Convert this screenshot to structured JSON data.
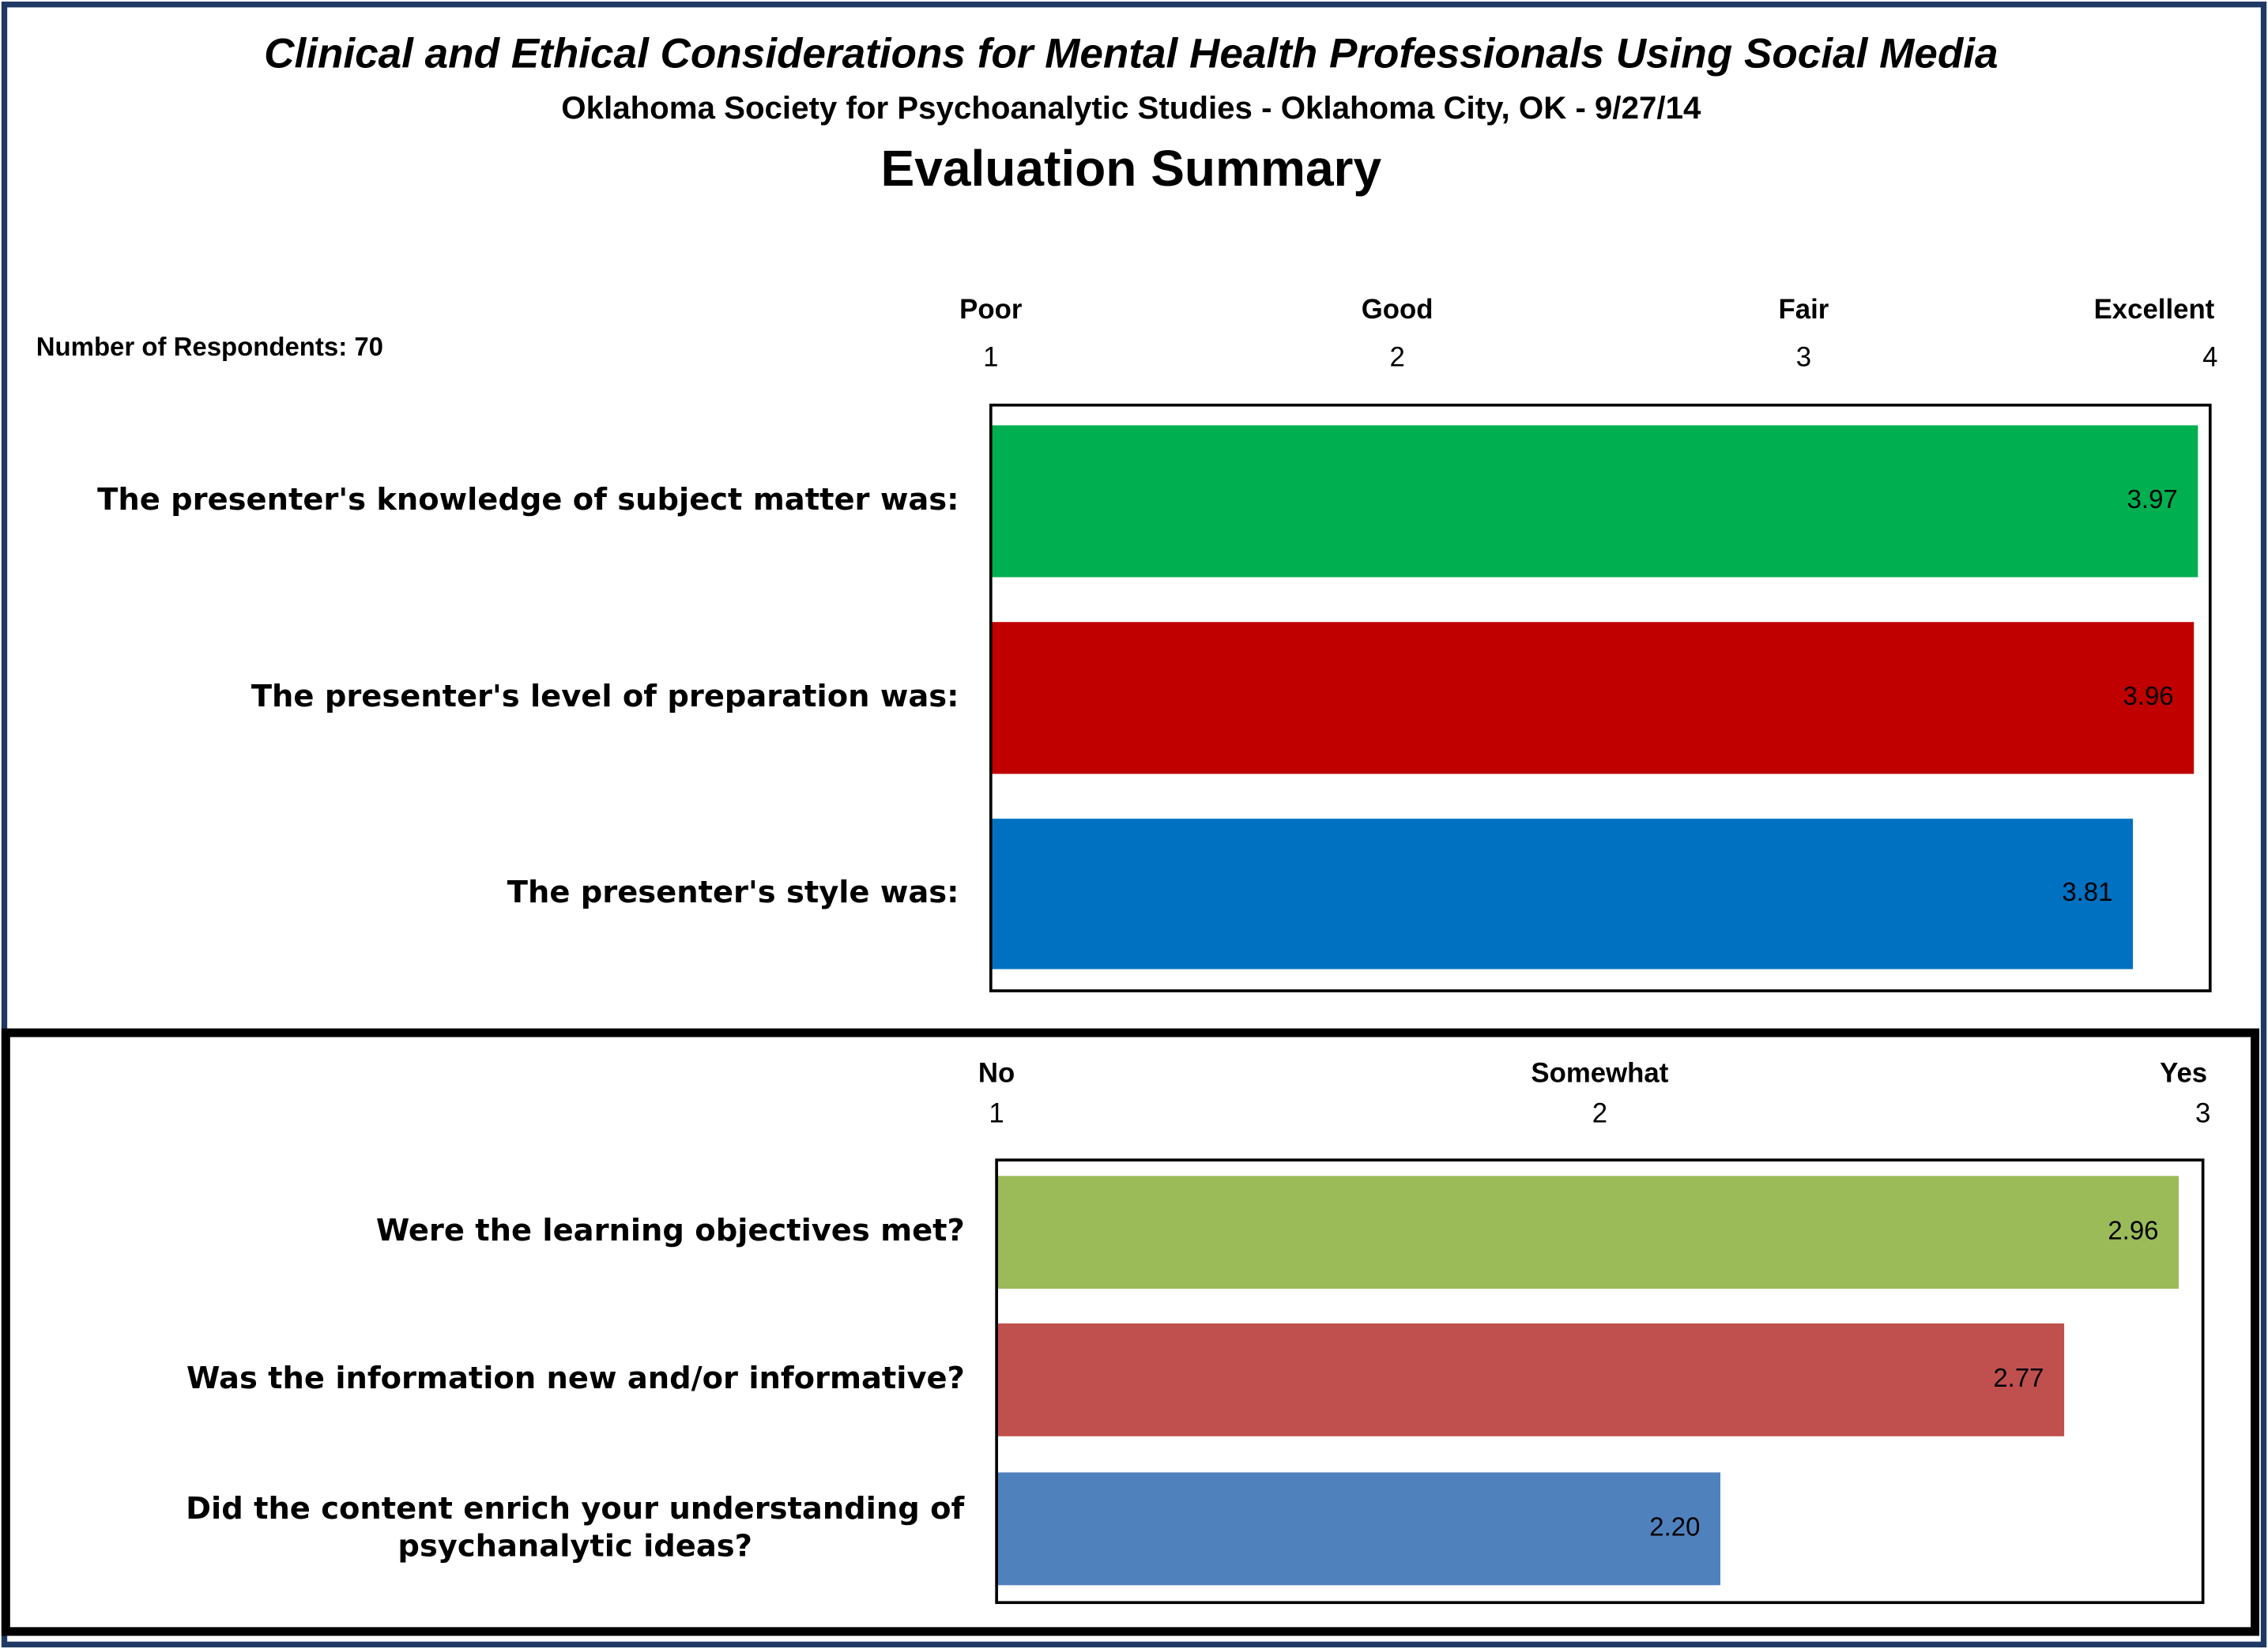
{
  "header": {
    "title": "Clinical and Ethical Considerations for Mental Health Professionals Using Social Media",
    "subtitle": "Oklahoma Society for Psychoanalytic Studies - Oklahoma City, OK - 9/27/14",
    "heading": "Evaluation Summary",
    "note": "Number of Respondents: 70"
  },
  "chart_data": [
    {
      "type": "hbar",
      "categories": [
        "The presenter's knowledge of subject matter was:",
        "The presenter's level of preparation was:",
        "The presenter's style was:"
      ],
      "values": [
        3.97,
        3.96,
        3.81
      ],
      "value_labels": [
        "3.97",
        "3.96",
        "3.81"
      ],
      "colors": [
        "#00b050",
        "#c00000",
        "#0070c0"
      ],
      "xlim": [
        1,
        4
      ],
      "xticks": [
        1,
        2,
        3,
        4
      ],
      "tick_names": [
        "Poor",
        "Good",
        "Fair",
        "Excellent"
      ]
    },
    {
      "type": "hbar",
      "categories": [
        "Were the learning objectives met?",
        "Was the information new and/or informative?",
        "Did the content enrich your understanding of psychanalytic ideas?"
      ],
      "values": [
        2.96,
        2.77,
        2.2
      ],
      "value_labels": [
        "2.96",
        "2.77",
        "2.20"
      ],
      "colors": [
        "#9bbb59",
        "#c0504d",
        "#4f81bd"
      ],
      "xlim": [
        1,
        3
      ],
      "xticks": [
        1,
        2,
        3
      ],
      "tick_names": [
        "No",
        "Somewhat",
        "Yes"
      ]
    }
  ]
}
